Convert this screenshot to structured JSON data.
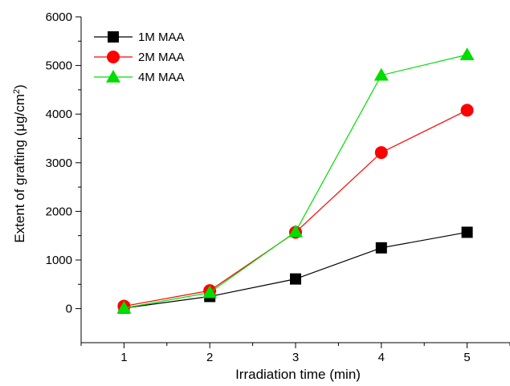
{
  "chart_data": {
    "type": "line",
    "xlabel": "Irradiation time (min)",
    "ylabel": {
      "prefix": "Extent of grafting (μg/cm",
      "sup": "2",
      "suffix": ")"
    },
    "x": [
      1,
      2,
      3,
      4,
      5
    ],
    "xlim": [
      0.5,
      5.5
    ],
    "ylim": [
      -700,
      6000
    ],
    "xticks": [
      1,
      2,
      3,
      4,
      5
    ],
    "yticks": [
      0,
      1000,
      2000,
      3000,
      4000,
      5000,
      6000
    ],
    "grid": false,
    "legend_position": "top-left",
    "series": [
      {
        "name": "1M MAA",
        "values": [
          10,
          250,
          610,
          1250,
          1570
        ],
        "color": "#000000",
        "marker": "square"
      },
      {
        "name": "2M MAA",
        "values": [
          50,
          370,
          1570,
          3210,
          4080
        ],
        "color": "#ff0000",
        "marker": "circle"
      },
      {
        "name": "4M MAA",
        "values": [
          10,
          330,
          1580,
          4800,
          5220
        ],
        "color": "#00dd00",
        "marker": "triangle"
      }
    ]
  }
}
